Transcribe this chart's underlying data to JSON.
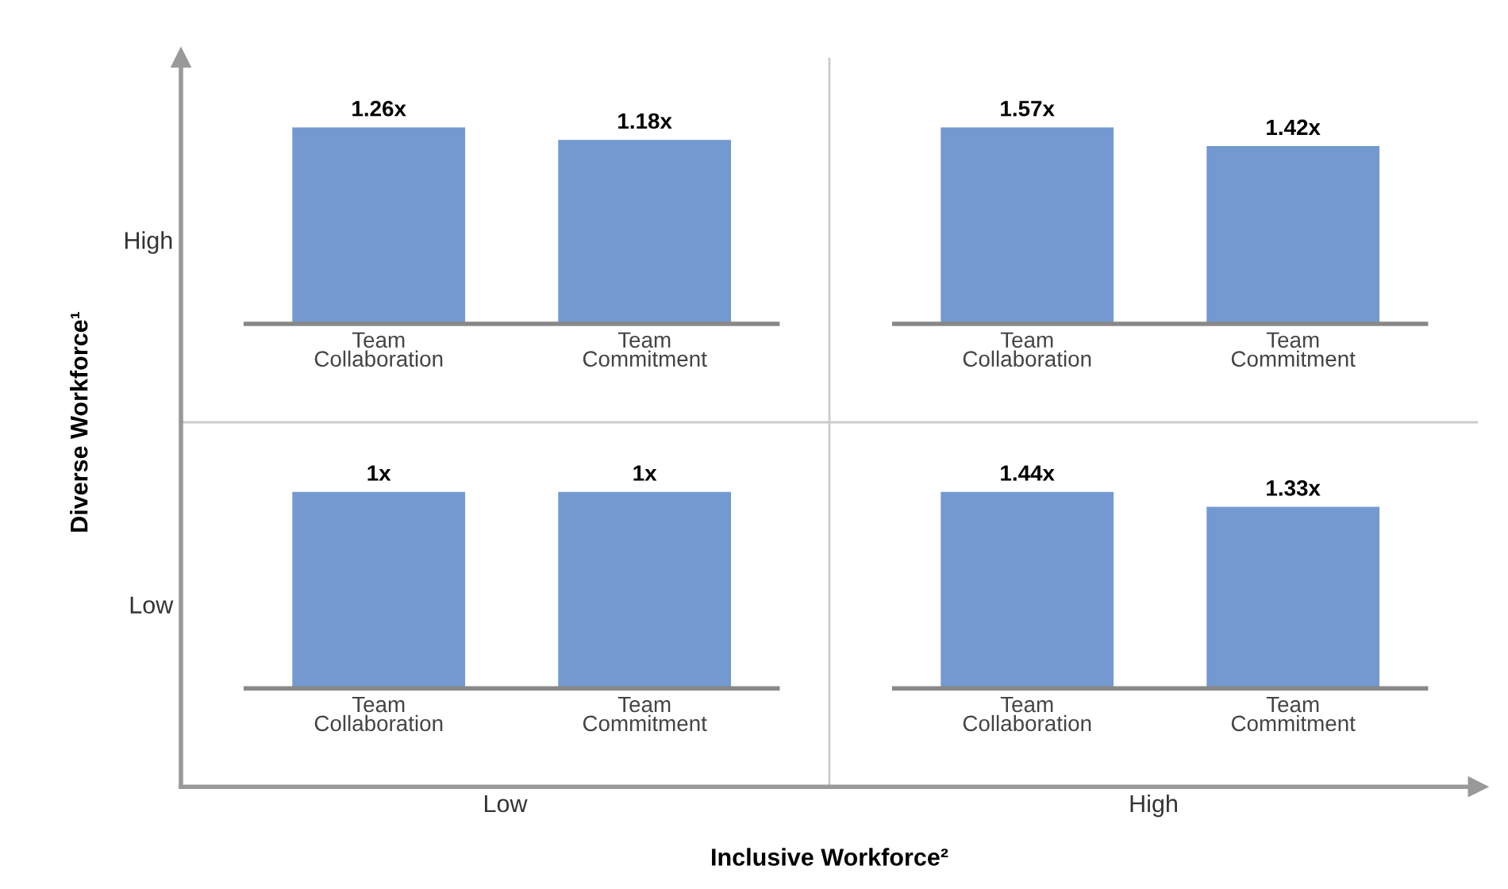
{
  "chart_data": [
    {
      "type": "other",
      "xlabel": "Inclusive Workforce²",
      "ylabel": "Diverse Workforce¹",
      "categories": [
        "Low",
        "High"
      ],
      "y_categories": [
        "High",
        "Low"
      ]
    },
    {
      "type": "bar",
      "categories": [
        "Team\nCollaboration",
        "Team\nCommitment"
      ],
      "values": [
        1.26,
        1.18
      ],
      "value_labels": [
        "1.26x",
        "1.18x"
      ],
      "color": "#7399d0"
    },
    {
      "type": "bar",
      "categories": [
        "Team\nCollaboration",
        "Team\nCommitment"
      ],
      "values": [
        1.57,
        1.42
      ],
      "value_labels": [
        "1.57x",
        "1.42x"
      ],
      "color": "#7399d0"
    },
    {
      "type": "bar",
      "categories": [
        "Team\nCollaboration",
        "Team\nCommitment"
      ],
      "values": [
        1,
        1
      ],
      "value_labels": [
        "1x",
        "1x"
      ],
      "color": "#7399d0"
    },
    {
      "type": "bar",
      "categories": [
        "Team\nCollaboration",
        "Team\nCommitment"
      ],
      "values": [
        1.44,
        1.33
      ],
      "value_labels": [
        "1.44x",
        "1.33x"
      ],
      "color": "#7399d0"
    }
  ]
}
